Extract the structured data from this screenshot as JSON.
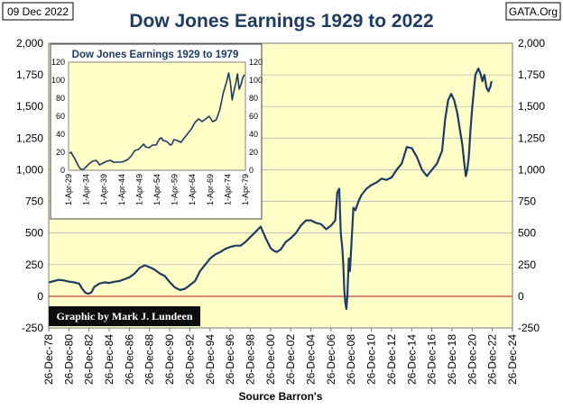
{
  "header": {
    "date": "09 Dec 2022",
    "title": "Dow Jones Earnings 1929 to 2022",
    "source_tag": "GATA.Org",
    "credit": "Graphic by Mark J. Lundeen",
    "xlabel": "Source Barron's"
  },
  "colors": {
    "plot_bg": "#ffffc8",
    "series": "#1f3b63",
    "zero_line": "#c0504d",
    "grid": "#b8b8b8",
    "title": "#1f3b63"
  },
  "chart_data": [
    {
      "type": "line",
      "title": "Dow Jones Earnings 1929 to 2022",
      "xlabel": "Source Barron's",
      "ylabel": "",
      "x_range": [
        1978.98,
        2024.98
      ],
      "ylim": [
        -250,
        2000
      ],
      "y_ticks": [
        -250,
        0,
        250,
        500,
        750,
        1000,
        1250,
        1500,
        1750,
        2000
      ],
      "y_tick_labels": [
        "-250",
        "0",
        "250",
        "500",
        "750",
        "1,000",
        "1,250",
        "1,500",
        "1,750",
        "2,000"
      ],
      "x_ticks": [
        1978.98,
        1980.98,
        1982.98,
        1984.98,
        1986.98,
        1988.98,
        1990.98,
        1992.98,
        1994.98,
        1996.98,
        1998.98,
        2000.98,
        2002.98,
        2004.98,
        2006.98,
        2008.98,
        2010.98,
        2012.98,
        2014.98,
        2016.98,
        2018.98,
        2020.98,
        2022.98,
        2024.98
      ],
      "x_tick_labels": [
        "26-Dec-78",
        "26-Dec-80",
        "26-Dec-82",
        "26-Dec-84",
        "26-Dec-86",
        "26-Dec-88",
        "26-Dec-90",
        "26-Dec-92",
        "26-Dec-94",
        "26-Dec-96",
        "26-Dec-98",
        "26-Dec-00",
        "26-Dec-02",
        "26-Dec-04",
        "26-Dec-06",
        "26-Dec-08",
        "26-Dec-10",
        "26-Dec-12",
        "26-Dec-14",
        "26-Dec-16",
        "26-Dec-18",
        "26-Dec-20",
        "26-Dec-22",
        "26-Dec-24"
      ],
      "grid": "horizontal",
      "series": [
        {
          "x": [
            1979.0,
            1979.5,
            1980.0,
            1980.5,
            1981.0,
            1981.5,
            1982.0,
            1982.3,
            1982.6,
            1982.9,
            1983.2,
            1983.5,
            1984.0,
            1984.5,
            1985.0,
            1985.5,
            1986.0,
            1986.5,
            1987.0,
            1987.5,
            1988.0,
            1988.5,
            1989.0,
            1989.5,
            1990.0,
            1990.5,
            1991.0,
            1991.5,
            1992.0,
            1992.5,
            1993.0,
            1993.5,
            1994.0,
            1994.5,
            1995.0,
            1995.5,
            1996.0,
            1996.5,
            1997.0,
            1997.5,
            1998.0,
            1998.5,
            1999.0,
            1999.5,
            2000.0,
            2000.5,
            2001.0,
            2001.3,
            2001.6,
            2002.0,
            2002.5,
            2003.0,
            2003.5,
            2004.0,
            2004.5,
            2005.0,
            2005.5,
            2006.0,
            2006.5,
            2007.0,
            2007.2,
            2007.4,
            2007.6,
            2007.8,
            2007.95,
            2008.1,
            2008.2,
            2008.3,
            2008.4,
            2008.5,
            2008.6,
            2008.75,
            2008.85,
            2009.0,
            2009.2,
            2009.4,
            2009.7,
            2010.0,
            2010.5,
            2011.0,
            2011.5,
            2012.0,
            2012.5,
            2013.0,
            2013.5,
            2014.0,
            2014.5,
            2015.0,
            2015.5,
            2016.0,
            2016.5,
            2017.0,
            2017.5,
            2018.0,
            2018.3,
            2018.6,
            2018.9,
            2019.2,
            2019.5,
            2019.8,
            2020.0,
            2020.2,
            2020.35,
            2020.5,
            2020.65,
            2020.8,
            2021.0,
            2021.3,
            2021.6,
            2021.8,
            2022.0,
            2022.2,
            2022.4,
            2022.6,
            2022.8,
            2022.9
          ],
          "y": [
            110,
            120,
            130,
            125,
            115,
            110,
            100,
            60,
            30,
            20,
            30,
            75,
            100,
            110,
            105,
            115,
            120,
            135,
            150,
            180,
            225,
            245,
            230,
            210,
            180,
            160,
            110,
            70,
            50,
            60,
            90,
            120,
            200,
            250,
            300,
            330,
            350,
            375,
            390,
            400,
            400,
            430,
            470,
            510,
            550,
            460,
            380,
            360,
            350,
            370,
            430,
            460,
            500,
            560,
            600,
            600,
            580,
            570,
            530,
            560,
            580,
            600,
            820,
            850,
            500,
            380,
            250,
            50,
            -50,
            -100,
            0,
            300,
            200,
            400,
            700,
            680,
            750,
            800,
            850,
            880,
            900,
            930,
            920,
            940,
            1000,
            1050,
            1180,
            1170,
            1100,
            1000,
            950,
            1000,
            1050,
            1150,
            1400,
            1550,
            1600,
            1550,
            1450,
            1300,
            1200,
            1050,
            950,
            1000,
            1100,
            1300,
            1500,
            1750,
            1800,
            1760,
            1700,
            1750,
            1650,
            1620,
            1660,
            1700
          ]
        }
      ]
    },
    {
      "type": "line",
      "title": "Dow Jones Earnings 1929 to 1979",
      "xlabel": "",
      "ylabel": "",
      "x_range": [
        1929.25,
        1979.25
      ],
      "ylim": [
        0,
        120
      ],
      "y_ticks": [
        0,
        20,
        40,
        60,
        80,
        100,
        120
      ],
      "y_tick_labels": [
        "0",
        "20",
        "40",
        "60",
        "80",
        "100",
        "120"
      ],
      "x_ticks": [
        1929.25,
        1934.25,
        1939.25,
        1944.25,
        1949.25,
        1954.25,
        1959.25,
        1964.25,
        1969.25,
        1974.25,
        1979.25
      ],
      "x_tick_labels": [
        "1-Apr-29",
        "1-Apr-34",
        "1-Apr-39",
        "1-Apr-44",
        "1-Apr-49",
        "1-Apr-54",
        "1-Apr-59",
        "1-Apr-64",
        "1-Apr-69",
        "1-Apr-74",
        "1-Apr-79"
      ],
      "grid": "none",
      "series": [
        {
          "x": [
            1929.5,
            1930.0,
            1930.5,
            1931.0,
            1931.5,
            1932.0,
            1932.5,
            1933.0,
            1933.5,
            1934.0,
            1934.5,
            1935.0,
            1936.0,
            1937.0,
            1937.5,
            1938.0,
            1938.5,
            1939.0,
            1940.0,
            1941.0,
            1942.0,
            1943.0,
            1944.0,
            1945.0,
            1946.0,
            1947.0,
            1948.0,
            1949.0,
            1950.0,
            1950.5,
            1951.0,
            1952.0,
            1953.0,
            1954.0,
            1955.0,
            1955.5,
            1956.0,
            1957.0,
            1958.0,
            1958.5,
            1959.0,
            1960.0,
            1961.0,
            1962.0,
            1963.0,
            1964.0,
            1965.0,
            1966.0,
            1967.0,
            1968.0,
            1969.0,
            1970.0,
            1971.0,
            1972.0,
            1973.0,
            1974.0,
            1974.5,
            1975.0,
            1975.5,
            1976.0,
            1976.5,
            1977.0,
            1977.5,
            1978.0,
            1978.5,
            1979.0
          ],
          "y": [
            19,
            20,
            16,
            13,
            9,
            5,
            2,
            1,
            1,
            3,
            5,
            7,
            10,
            11,
            9,
            6,
            7,
            8,
            10,
            11,
            9,
            9,
            9,
            10,
            12,
            16,
            22,
            23,
            27,
            29,
            26,
            25,
            28,
            28,
            35,
            36,
            33,
            32,
            28,
            29,
            34,
            33,
            31,
            36,
            41,
            46,
            53,
            57,
            54,
            57,
            60,
            54,
            56,
            67,
            86,
            99,
            108,
            98,
            78,
            88,
            96,
            107,
            90,
            95,
            103,
            106
          ]
        }
      ]
    }
  ]
}
